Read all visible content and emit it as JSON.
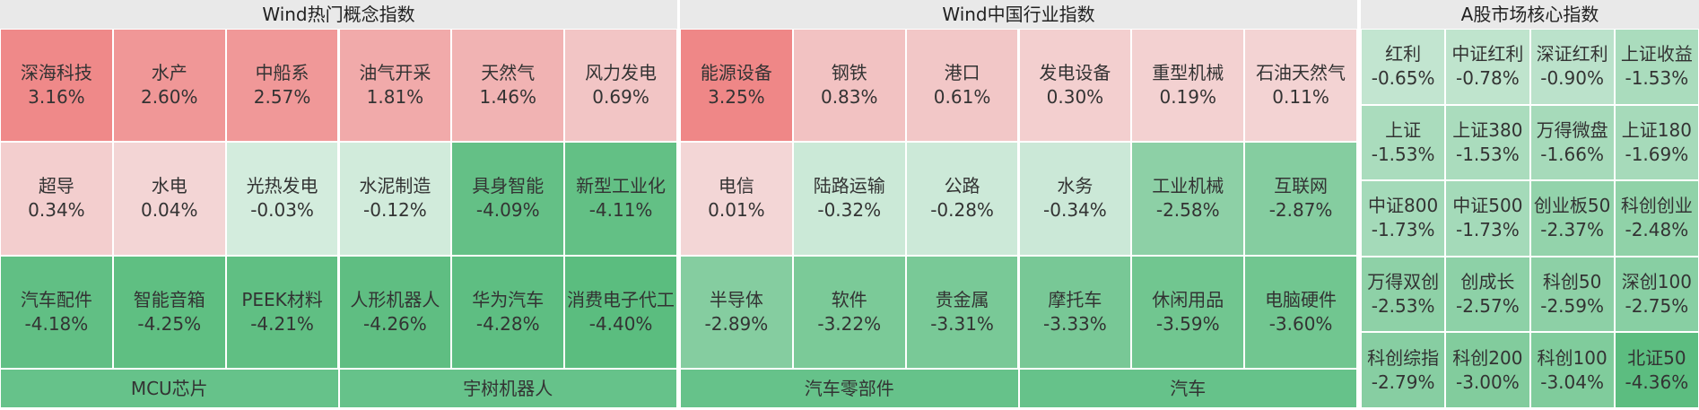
{
  "panels": [
    {
      "title": "Wind热门概念指数",
      "cols": 6,
      "tiles": [
        {
          "name": "深海科技",
          "value": "3.16%"
        },
        {
          "name": "水产",
          "value": "2.60%"
        },
        {
          "name": "中船系",
          "value": "2.57%"
        },
        {
          "name": "油气开采",
          "value": "1.81%"
        },
        {
          "name": "天然气",
          "value": "1.46%"
        },
        {
          "name": "风力发电",
          "value": "0.69%"
        },
        {
          "name": "超导",
          "value": "0.34%"
        },
        {
          "name": "水电",
          "value": "0.04%"
        },
        {
          "name": "光热发电",
          "value": "-0.03%"
        },
        {
          "name": "水泥制造",
          "value": "-0.12%"
        },
        {
          "name": "具身智能",
          "value": "-4.09%"
        },
        {
          "name": "新型工业化",
          "value": "-4.11%"
        },
        {
          "name": "汽车配件",
          "value": "-4.18%"
        },
        {
          "name": "智能音箱",
          "value": "-4.25%"
        },
        {
          "name": "PEEK材料",
          "value": "-4.21%"
        },
        {
          "name": "人形机器人",
          "value": "-4.26%"
        },
        {
          "name": "华为汽车",
          "value": "-4.28%"
        },
        {
          "name": "消费电子代工",
          "value": "-4.40%"
        }
      ],
      "footer": [
        "MCU芯片",
        "宇树机器人"
      ]
    },
    {
      "title": "Wind中国行业指数",
      "cols": 6,
      "tiles": [
        {
          "name": "能源设备",
          "value": "3.25%"
        },
        {
          "name": "钢铁",
          "value": "0.83%"
        },
        {
          "name": "港口",
          "value": "0.61%"
        },
        {
          "name": "发电设备",
          "value": "0.30%"
        },
        {
          "name": "重型机械",
          "value": "0.19%"
        },
        {
          "name": "石油天然气",
          "value": "0.11%"
        },
        {
          "name": "电信",
          "value": "0.01%"
        },
        {
          "name": "陆路运输",
          "value": "-0.32%"
        },
        {
          "name": "公路",
          "value": "-0.28%"
        },
        {
          "name": "水务",
          "value": "-0.34%"
        },
        {
          "name": "工业机械",
          "value": "-2.58%"
        },
        {
          "name": "互联网",
          "value": "-2.87%"
        },
        {
          "name": "半导体",
          "value": "-2.89%"
        },
        {
          "name": "软件",
          "value": "-3.22%"
        },
        {
          "name": "贵金属",
          "value": "-3.31%"
        },
        {
          "name": "摩托车",
          "value": "-3.33%"
        },
        {
          "name": "休闲用品",
          "value": "-3.59%"
        },
        {
          "name": "电脑硬件",
          "value": "-3.60%"
        }
      ],
      "footer": [
        "汽车零部件",
        "汽车"
      ]
    },
    {
      "title": "A股市场核心指数",
      "cols": 4,
      "tiles": [
        {
          "name": "红利",
          "value": "-0.65%"
        },
        {
          "name": "中证红利",
          "value": "-0.78%"
        },
        {
          "name": "深证红利",
          "value": "-0.90%"
        },
        {
          "name": "上证收益",
          "value": "-1.53%"
        },
        {
          "name": "上证",
          "value": "-1.53%"
        },
        {
          "name": "上证380",
          "value": "-1.53%"
        },
        {
          "name": "万得微盘",
          "value": "-1.66%"
        },
        {
          "name": "上证180",
          "value": "-1.69%"
        },
        {
          "name": "中证800",
          "value": "-1.73%"
        },
        {
          "name": "中证500",
          "value": "-1.73%"
        },
        {
          "name": "创业板50",
          "value": "-2.37%"
        },
        {
          "name": "科创创业",
          "value": "-2.48%"
        },
        {
          "name": "万得双创",
          "value": "-2.53%"
        },
        {
          "name": "创成长",
          "value": "-2.57%"
        },
        {
          "name": "科创50",
          "value": "-2.59%"
        },
        {
          "name": "深创100",
          "value": "-2.75%"
        },
        {
          "name": "科创综指",
          "value": "-2.79%"
        },
        {
          "name": "科创200",
          "value": "-3.00%"
        },
        {
          "name": "科创100",
          "value": "-3.04%"
        },
        {
          "name": "北证50",
          "value": "-4.36%"
        }
      ]
    }
  ]
}
